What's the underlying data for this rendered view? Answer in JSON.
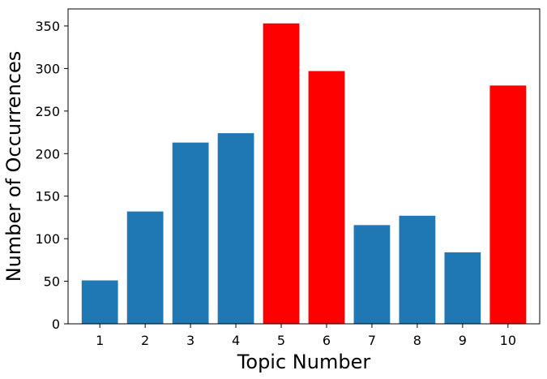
{
  "chart_data": {
    "type": "bar",
    "title": "",
    "xlabel": "Topic Number",
    "ylabel": "Number of Occurrences",
    "categories": [
      "1",
      "2",
      "3",
      "4",
      "5",
      "6",
      "7",
      "8",
      "9",
      "10"
    ],
    "values": [
      51,
      132,
      213,
      224,
      353,
      297,
      116,
      127,
      84,
      280
    ],
    "bar_colors": [
      "#1f77b4",
      "#1f77b4",
      "#1f77b4",
      "#1f77b4",
      "#ff0000",
      "#ff0000",
      "#1f77b4",
      "#1f77b4",
      "#1f77b4",
      "#ff0000"
    ],
    "ylim": [
      0,
      370
    ],
    "yticks": [
      0,
      50,
      100,
      150,
      200,
      250,
      300,
      350
    ],
    "grid": false,
    "legend": "none"
  }
}
